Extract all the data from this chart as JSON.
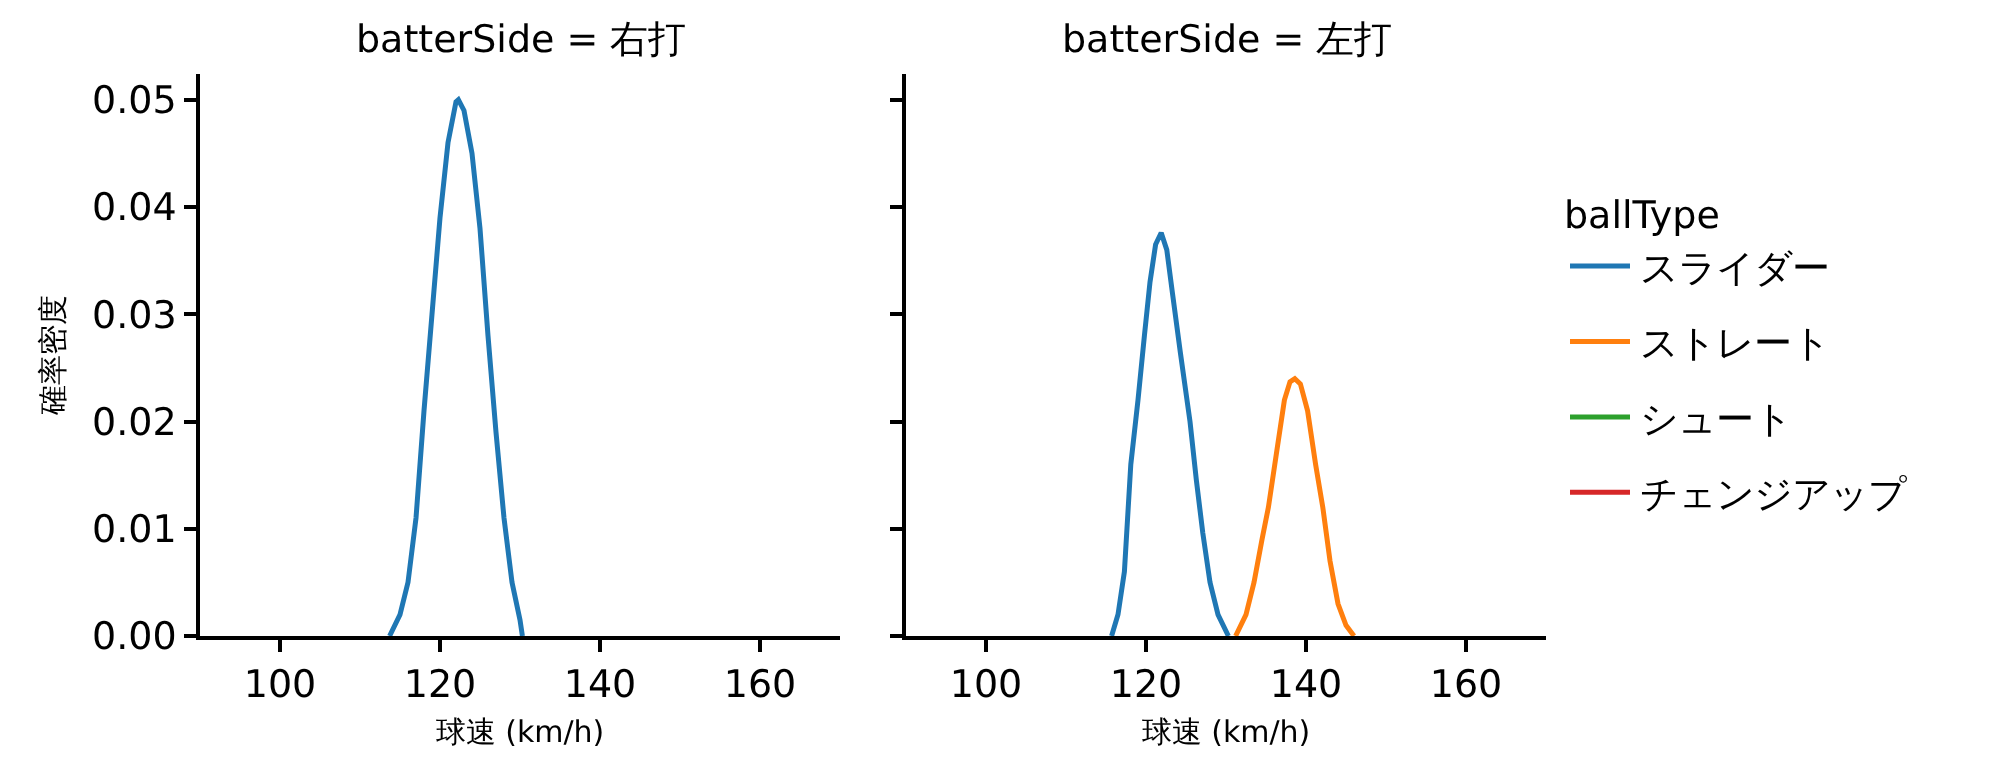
{
  "chart_data": [
    {
      "type": "line",
      "title": "batterSide = 右打",
      "xlabel": "球速 (km/h)",
      "ylabel": "確率密度",
      "xlim": [
        90,
        170
      ],
      "xticks": [
        100,
        120,
        140,
        160
      ],
      "ylim": [
        0,
        0.0524
      ],
      "yticks": [
        {
          "value": 0,
          "label": "0.00"
        },
        {
          "value": 0.01,
          "label": "0.01"
        },
        {
          "value": 0.02,
          "label": "0.02"
        },
        {
          "value": 0.03,
          "label": "0.03"
        },
        {
          "value": 0.04,
          "label": "0.04"
        },
        {
          "value": 0.05,
          "label": "0.05"
        }
      ],
      "legend": "right",
      "series": [
        {
          "name": "スライダー",
          "color": "#1f77b4",
          "x": [
            113.7,
            115,
            116,
            117,
            118,
            119,
            120,
            121,
            122,
            122.3,
            123,
            124,
            125,
            126,
            127,
            128,
            129,
            130,
            130.3
          ],
          "values": [
            0,
            0.002,
            0.005,
            0.011,
            0.021,
            0.03,
            0.039,
            0.046,
            0.0498,
            0.05,
            0.049,
            0.045,
            0.038,
            0.028,
            0.019,
            0.011,
            0.005,
            0.0015,
            0
          ]
        }
      ]
    },
    {
      "type": "line",
      "title": "batterSide = 左打",
      "xlabel": "球速 (km/h)",
      "xlim": [
        90,
        170
      ],
      "xticks": [
        100,
        120,
        140,
        160
      ],
      "ylim": [
        0,
        0.0524
      ],
      "yticks": [
        {
          "value": 0,
          "label": null
        },
        {
          "value": 0.01,
          "label": null
        },
        {
          "value": 0.02,
          "label": null
        },
        {
          "value": 0.03,
          "label": null
        },
        {
          "value": 0.04,
          "label": null
        },
        {
          "value": 0.05,
          "label": null
        }
      ],
      "tick_labels": "x",
      "legend": "right",
      "legend_title": "ballType",
      "series": [
        {
          "name": "スライダー",
          "color": "#1f77b4",
          "x": [
            115.7,
            116.5,
            117.3,
            118.1,
            119,
            119.8,
            120.5,
            121.2,
            121.9,
            122.6,
            123.3,
            124.3,
            125.5,
            126.3,
            127.1,
            128,
            129,
            130.3
          ],
          "values": [
            0,
            0.002,
            0.006,
            0.016,
            0.022,
            0.028,
            0.033,
            0.0365,
            0.0376,
            0.036,
            0.032,
            0.0264,
            0.02,
            0.0145,
            0.0096,
            0.005,
            0.002,
            0
          ]
        },
        {
          "name": "ストレート",
          "color": "#ff7f0e",
          "x": [
            131.2,
            132.5,
            133.5,
            134.5,
            135.3,
            136.3,
            137.3,
            138,
            138.6,
            139.3,
            140.2,
            141.2,
            142.1,
            143,
            144,
            145,
            146
          ],
          "values": [
            0,
            0.002,
            0.005,
            0.009,
            0.012,
            0.017,
            0.022,
            0.0237,
            0.024,
            0.0235,
            0.021,
            0.016,
            0.012,
            0.007,
            0.003,
            0.001,
            0
          ]
        },
        {
          "name": "シュート",
          "color": "#2ca02c"
        },
        {
          "name": "チェンジアップ",
          "color": "#d62728"
        }
      ]
    }
  ]
}
